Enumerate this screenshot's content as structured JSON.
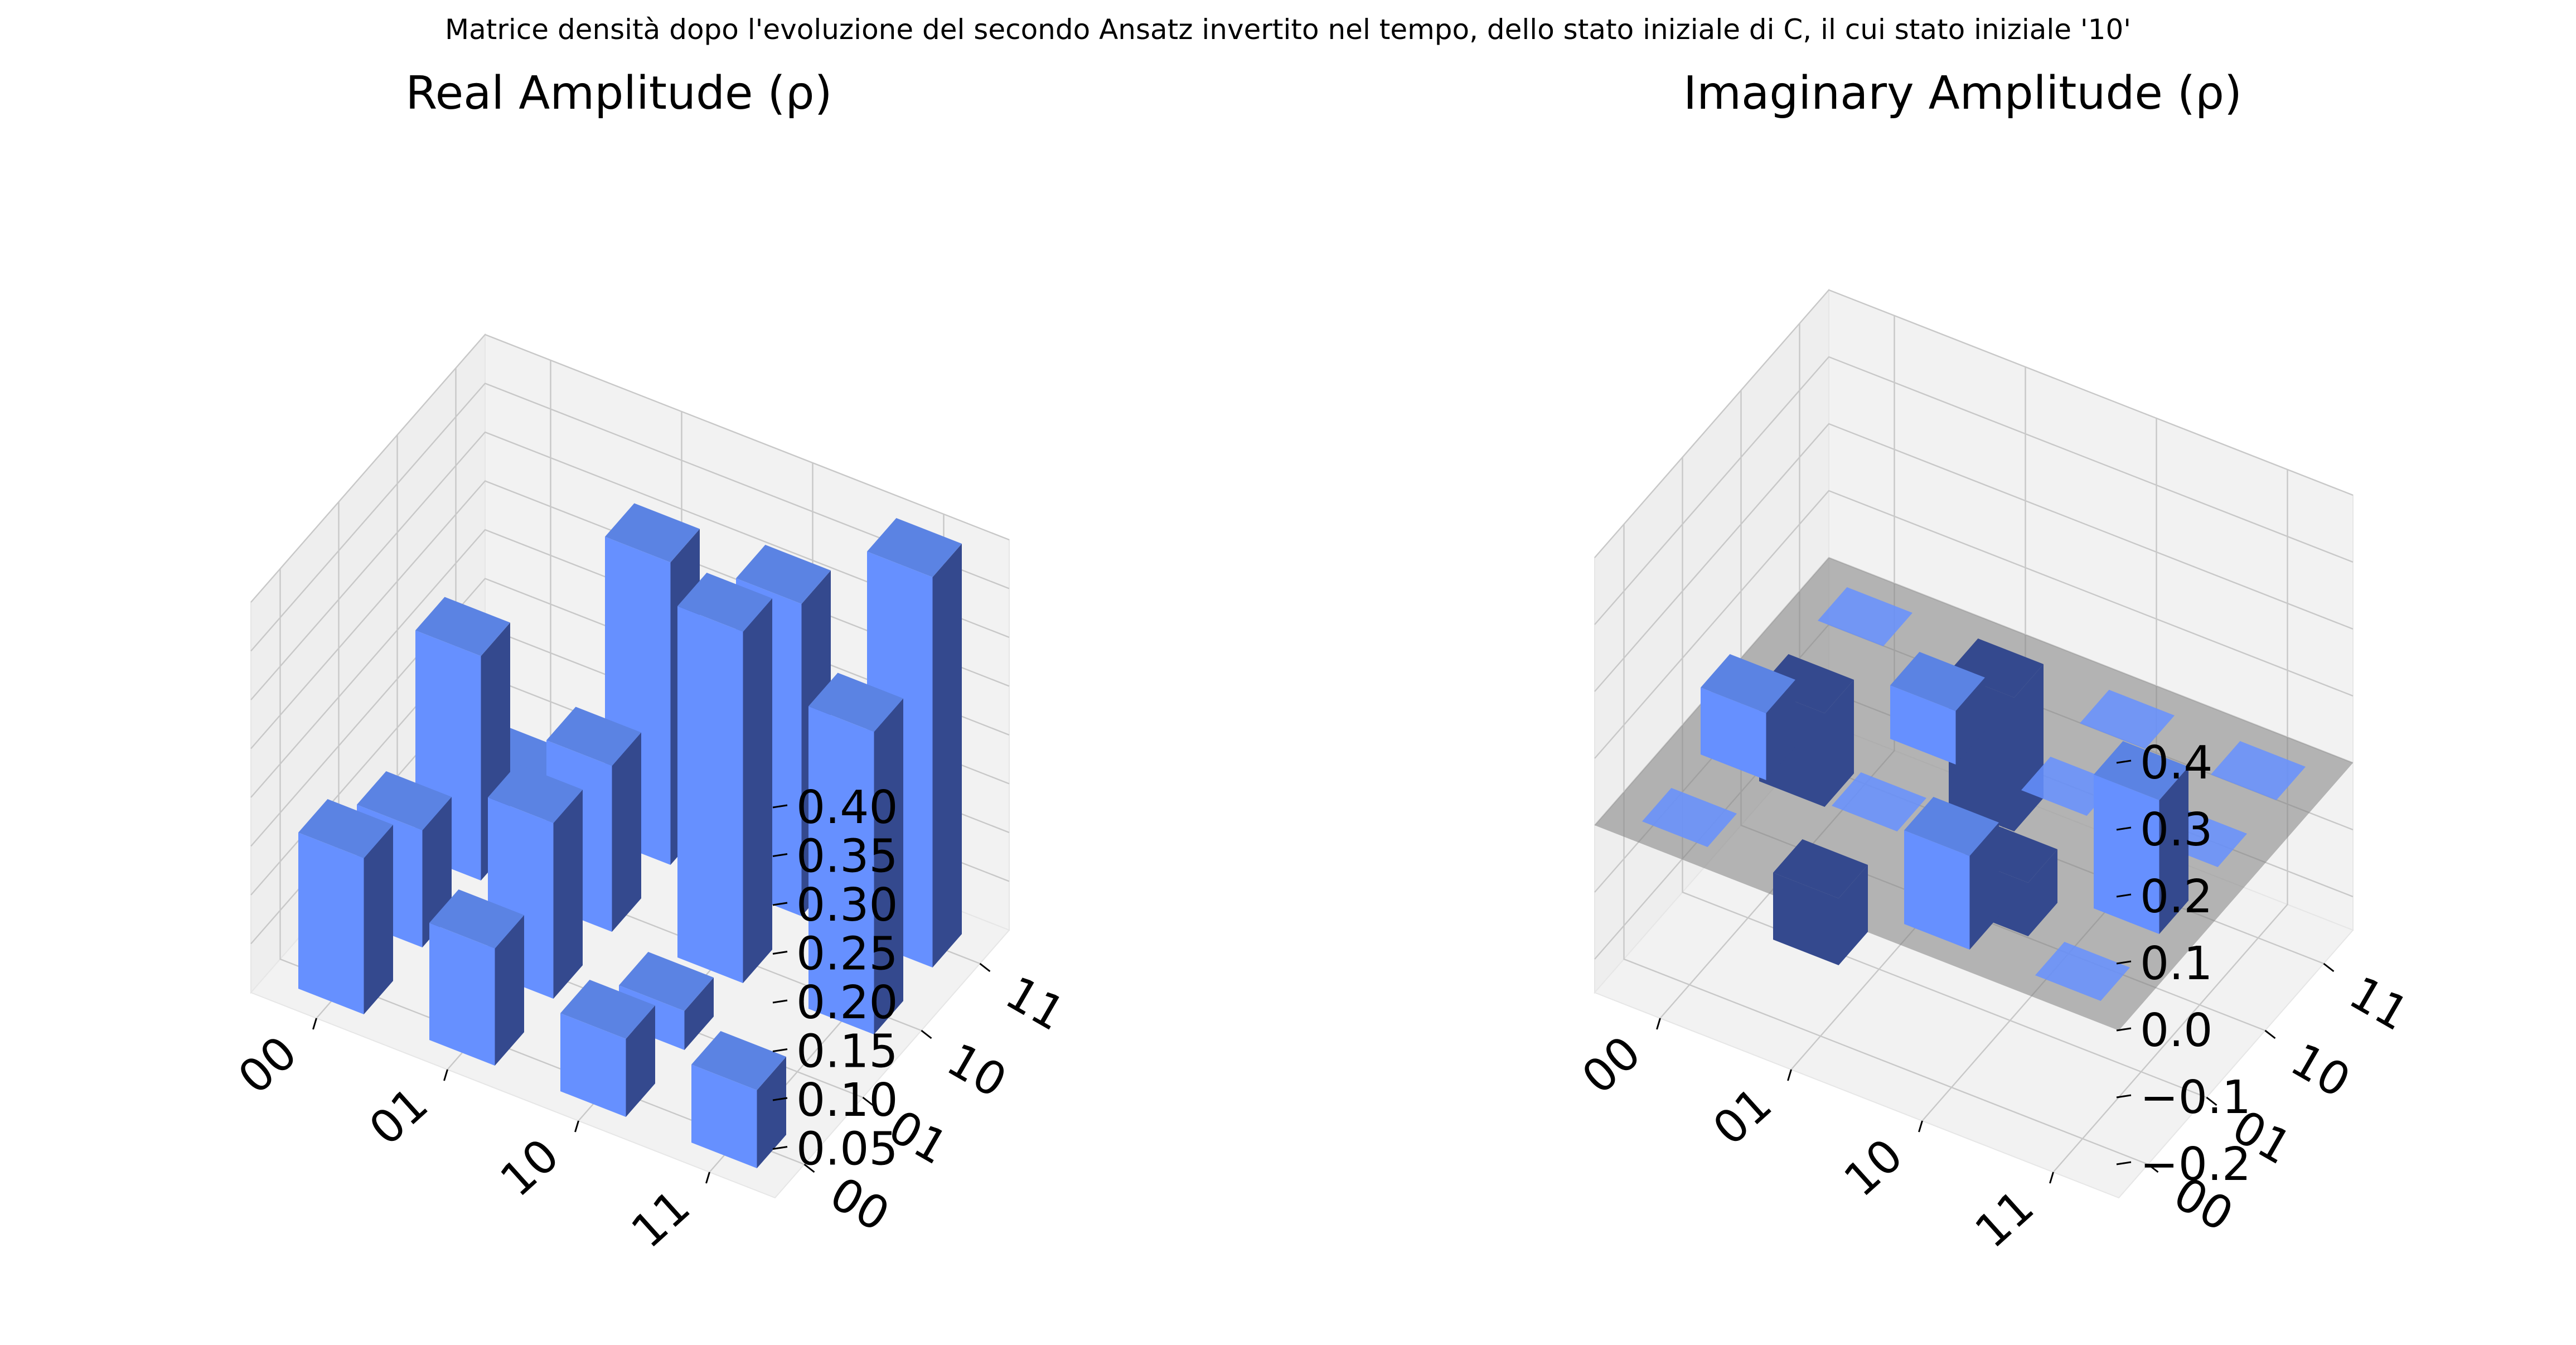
{
  "figure": {
    "suptitle": "Matrice densità dopo l'evoluzione del secondo Ansatz invertito nel tempo, dello stato iniziale di C, il cui stato iniziale '10'"
  },
  "colors": {
    "bar_top": "#5b83e3",
    "bar_front": "#6690ff",
    "bar_side": "#34498e",
    "bar_dark_top": "#34498e",
    "pane_wall": "#f2f2f2",
    "pane_floor": "#f2f2f2",
    "grid": "#c8c8c8",
    "zero_plane": "#808080"
  },
  "chart_data": [
    {
      "type": "bar3d",
      "title": "Real Amplitude (ρ)",
      "row_labels": [
        "00",
        "01",
        "10",
        "11"
      ],
      "col_labels": [
        "00",
        "01",
        "10",
        "11"
      ],
      "zlim": [
        0,
        0.4
      ],
      "z_ticks": [
        "0.05",
        "0.10",
        "0.15",
        "0.20",
        "0.25",
        "0.30",
        "0.35",
        "0.40"
      ],
      "z_tick_values": [
        0.05,
        0.1,
        0.15,
        0.2,
        0.25,
        0.3,
        0.35,
        0.4
      ],
      "values": [
        [
          0.16,
          0.12,
          0.23,
          0.03
        ],
        [
          0.12,
          0.18,
          0.17,
          0.31
        ],
        [
          0.08,
          0.04,
          0.36,
          0.32
        ],
        [
          0.08,
          0.0,
          0.31,
          0.4
        ]
      ]
    },
    {
      "type": "bar3d",
      "title": "Imaginary Amplitude (ρ)",
      "row_labels": [
        "00",
        "01",
        "10",
        "11"
      ],
      "col_labels": [
        "00",
        "01",
        "10",
        "11"
      ],
      "zlim": [
        -0.25,
        0.4
      ],
      "z_ticks": [
        "−0.2",
        "−0.1",
        "0.0",
        "0.1",
        "0.2",
        "0.3",
        "0.4"
      ],
      "z_tick_values": [
        -0.2,
        -0.1,
        0.0,
        0.1,
        0.2,
        0.3,
        0.4
      ],
      "values": [
        [
          0.0,
          0.1,
          -0.14,
          0.0
        ],
        [
          -0.1,
          0.0,
          0.08,
          -0.2
        ],
        [
          0.14,
          -0.08,
          0.0,
          0.0
        ],
        [
          0.0,
          0.2,
          0.0,
          0.0
        ]
      ]
    }
  ]
}
